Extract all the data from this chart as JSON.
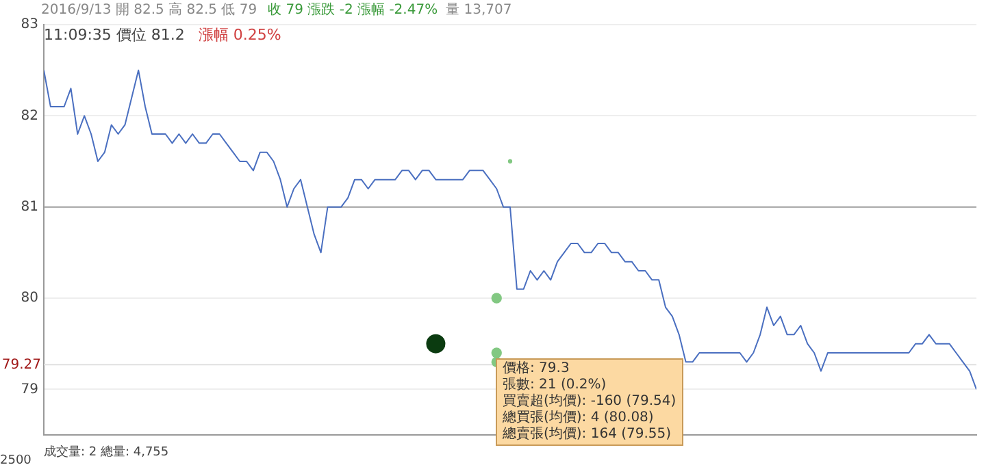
{
  "chart_data": {
    "type": "line",
    "title": "2016/9/13 開 82.5 高 82.5 低 79",
    "subtitle": "收 79 漲跌 -2 漲幅 -2.47%",
    "annotations": [
      "量 13,707",
      "11:09:35 價位 81.2",
      "漲幅 0.25%",
      "成交量: 2 總量: 4,755",
      "2500",
      "價格: 79.3\n張數: 21 (0.2%)\n買賣超(均價): -160 (79.54)\n總買張(均價): 4 (80.08)\n總賣張(均價): 164 (79.55)"
    ],
    "categories": [
      null,
      null,
      null,
      null,
      null,
      null,
      null,
      null,
      null,
      null,
      null,
      null,
      null,
      null,
      null,
      null,
      null,
      null,
      null,
      null,
      null,
      null,
      null,
      null,
      null,
      null,
      null,
      null,
      null,
      null,
      null,
      null,
      null,
      null,
      null,
      null,
      null,
      null,
      null,
      null,
      null,
      null,
      null,
      null,
      null,
      null,
      null,
      null,
      null,
      null,
      null,
      null,
      null,
      null,
      null,
      null,
      null,
      null,
      null,
      null,
      null,
      null,
      null,
      null,
      null,
      null,
      null,
      null,
      null,
      null,
      null,
      null,
      null,
      null,
      null,
      null,
      null,
      null,
      null,
      null,
      null,
      null,
      null,
      null,
      null,
      null,
      null,
      null,
      null,
      null,
      null,
      null,
      null,
      null,
      null,
      null,
      null,
      null,
      null,
      null,
      null,
      null,
      null,
      null,
      null,
      null,
      null,
      null,
      null,
      null,
      null,
      null,
      null,
      null,
      null,
      null,
      null,
      null,
      null,
      null,
      null,
      null,
      null,
      null,
      null,
      null,
      null,
      null,
      null,
      null,
      null,
      null,
      null,
      null,
      null,
      null,
      null,
      null,
      null
    ],
    "ylim": [
      78.5,
      83
    ],
    "yticks": [
      79,
      80,
      81,
      82,
      83
    ],
    "grid": "y",
    "tick_labels": "y",
    "line_style": "solid",
    "ref_lines": [
      {
        "axis": "y",
        "value": 81,
        "label": null,
        "color": "#a0a0a0"
      },
      {
        "axis": "y",
        "value": 79.27,
        "label": "79.27",
        "color": "#e0e0e0"
      }
    ],
    "series": [
      {
        "color": "#4a6fc0",
        "marker": "none",
        "values": [
          82.5,
          82.1,
          82.1,
          82.1,
          82.3,
          81.8,
          82.0,
          81.8,
          81.5,
          81.6,
          81.9,
          81.8,
          81.9,
          82.2,
          82.5,
          82.1,
          81.8,
          81.8,
          81.8,
          81.7,
          81.8,
          81.7,
          81.8,
          81.7,
          81.7,
          81.8,
          81.8,
          81.7,
          81.6,
          81.5,
          81.5,
          81.4,
          81.6,
          81.6,
          81.5,
          81.3,
          81.0,
          81.2,
          81.3,
          81.0,
          80.7,
          80.5,
          81.0,
          81.0,
          81.0,
          81.1,
          81.3,
          81.3,
          81.2,
          81.3,
          81.3,
          81.3,
          81.3,
          81.4,
          81.4,
          81.3,
          81.4,
          81.4,
          81.3,
          81.3,
          81.3,
          81.3,
          81.3,
          81.4,
          81.4,
          81.4,
          81.3,
          81.2,
          81.0,
          81.0,
          80.1,
          80.1,
          80.3,
          80.2,
          80.3,
          80.2,
          80.4,
          80.5,
          80.6,
          80.6,
          80.5,
          80.5,
          80.6,
          80.6,
          80.5,
          80.5,
          80.4,
          80.4,
          80.3,
          80.3,
          80.2,
          80.2,
          79.9,
          79.8,
          79.6,
          79.3,
          79.3,
          79.4,
          79.4,
          79.4,
          79.4,
          79.4,
          79.4,
          79.4,
          79.3,
          79.4,
          79.6,
          79.9,
          79.7,
          79.8,
          79.6,
          79.6,
          79.7,
          79.5,
          79.4,
          79.2,
          79.4,
          79.4,
          79.4,
          79.4,
          79.4,
          79.4,
          79.4,
          79.4,
          79.4,
          79.4,
          79.4,
          79.4,
          79.4,
          79.5,
          79.5,
          79.6,
          79.5,
          79.5,
          79.5,
          79.4,
          79.3,
          79.2,
          79.0
        ]
      },
      {
        "type": "bubble",
        "color": "#82c882",
        "values": [
          null,
          null,
          null,
          null,
          null,
          null,
          null,
          null,
          null,
          null,
          null,
          null,
          null,
          null,
          null,
          null,
          null,
          null,
          null,
          null,
          null,
          null,
          null,
          null,
          null,
          null,
          null,
          null,
          null,
          null,
          null,
          null,
          null,
          null,
          null,
          null,
          null,
          null,
          null,
          null,
          null,
          null,
          null,
          null,
          null,
          null,
          null,
          null,
          null,
          null,
          null,
          null,
          null,
          null,
          null,
          null,
          null,
          null,
          null,
          null,
          null,
          null,
          null,
          null,
          null,
          null,
          null,
          80.0,
          null,
          81.5,
          null,
          null,
          null,
          null,
          null,
          null,
          null,
          null,
          null,
          null,
          null,
          null,
          null,
          null,
          null,
          null,
          null,
          null,
          null,
          null,
          null,
          null,
          null,
          null,
          null,
          null,
          null,
          null,
          null,
          null,
          null,
          null,
          null,
          null,
          null,
          null,
          null,
          null,
          null,
          null,
          null,
          null,
          null,
          null,
          null,
          null,
          null,
          null,
          null,
          null,
          null,
          null,
          null,
          null,
          null,
          null,
          null,
          null,
          null,
          null,
          null,
          null,
          null,
          null,
          null,
          null,
          null,
          null,
          null
        ],
        "sizes": [
          null,
          null,
          null,
          null,
          null,
          null,
          null,
          null,
          null,
          null,
          null,
          null,
          null,
          null,
          null,
          null,
          null,
          null,
          null,
          null,
          null,
          null,
          null,
          null,
          null,
          null,
          null,
          null,
          null,
          null,
          null,
          null,
          null,
          null,
          null,
          null,
          null,
          null,
          null,
          null,
          null,
          null,
          null,
          null,
          null,
          null,
          null,
          null,
          null,
          null,
          null,
          null,
          null,
          null,
          null,
          null,
          null,
          null,
          null,
          null,
          null,
          null,
          null,
          null,
          null,
          null,
          null,
          0.3,
          null,
          0.05,
          null,
          null,
          null,
          null,
          null,
          null,
          null,
          null,
          null,
          null,
          null,
          null,
          null,
          null,
          null,
          null,
          null,
          null,
          null,
          null,
          null,
          null,
          null,
          null,
          null,
          null,
          null,
          null,
          null,
          null,
          null,
          null,
          null,
          null,
          null,
          null,
          null,
          null,
          null,
          null,
          null,
          null,
          null,
          null,
          null,
          null,
          null,
          null,
          null,
          null,
          null,
          null,
          null,
          null,
          null,
          null,
          null,
          null,
          null,
          null,
          null,
          null,
          null,
          null,
          null,
          null,
          null,
          null,
          null
        ]
      },
      {
        "type": "bubble",
        "color": "#82c882",
        "values": [
          null,
          null,
          null,
          null,
          null,
          null,
          null,
          null,
          null,
          null,
          null,
          null,
          null,
          null,
          null,
          null,
          null,
          null,
          null,
          null,
          null,
          null,
          null,
          null,
          null,
          null,
          null,
          null,
          null,
          null,
          null,
          null,
          null,
          null,
          null,
          null,
          null,
          null,
          null,
          null,
          null,
          null,
          null,
          null,
          null,
          null,
          null,
          null,
          null,
          null,
          null,
          null,
          null,
          null,
          null,
          null,
          null,
          null,
          null,
          null,
          null,
          null,
          null,
          null,
          null,
          null,
          null,
          79.4,
          null,
          null,
          null,
          null,
          null,
          null,
          null,
          null,
          null,
          null,
          null,
          null,
          null,
          null,
          null,
          null,
          null,
          null,
          null,
          null,
          null,
          null,
          null,
          null,
          null,
          null,
          null,
          null,
          null,
          null,
          null,
          null,
          null,
          null,
          null,
          null,
          null,
          null,
          null,
          null,
          null,
          null,
          null,
          null,
          null,
          null,
          null,
          null,
          null,
          null,
          null,
          null,
          null,
          null,
          null,
          null,
          null,
          null,
          null,
          null,
          null,
          null,
          null,
          null,
          null,
          null,
          null,
          null,
          null,
          null,
          null
        ],
        "sizes": [
          null,
          null,
          null,
          null,
          null,
          null,
          null,
          null,
          null,
          null,
          null,
          null,
          null,
          null,
          null,
          null,
          null,
          null,
          null,
          null,
          null,
          null,
          null,
          null,
          null,
          null,
          null,
          null,
          null,
          null,
          null,
          null,
          null,
          null,
          null,
          null,
          null,
          null,
          null,
          null,
          null,
          null,
          null,
          null,
          null,
          null,
          null,
          null,
          null,
          null,
          null,
          null,
          null,
          null,
          null,
          null,
          null,
          null,
          null,
          null,
          null,
          null,
          null,
          null,
          null,
          null,
          null,
          0.3,
          null,
          null,
          null,
          null,
          null,
          null,
          null,
          null,
          null,
          null,
          null,
          null,
          null,
          null,
          null,
          null,
          null,
          null,
          null,
          null,
          null,
          null,
          null,
          null,
          null,
          null,
          null,
          null,
          null,
          null,
          null,
          null,
          null,
          null,
          null,
          null,
          null,
          null,
          null,
          null,
          null,
          null,
          null,
          null,
          null,
          null,
          null,
          null,
          null,
          null,
          null,
          null,
          null,
          null,
          null,
          null,
          null,
          null,
          null,
          null,
          null,
          null,
          null,
          null,
          null,
          null,
          null,
          null,
          null,
          null,
          null
        ]
      },
      {
        "type": "bubble",
        "color": "#82c882",
        "values": [
          null,
          null,
          null,
          null,
          null,
          null,
          null,
          null,
          null,
          null,
          null,
          null,
          null,
          null,
          null,
          null,
          null,
          null,
          null,
          null,
          null,
          null,
          null,
          null,
          null,
          null,
          null,
          null,
          null,
          null,
          null,
          null,
          null,
          null,
          null,
          null,
          null,
          null,
          null,
          null,
          null,
          null,
          null,
          null,
          null,
          null,
          null,
          null,
          null,
          null,
          null,
          null,
          null,
          null,
          null,
          null,
          null,
          null,
          null,
          null,
          null,
          null,
          null,
          null,
          null,
          null,
          null,
          79.3,
          null,
          null,
          null,
          null,
          null,
          null,
          null,
          null,
          null,
          null,
          null,
          null,
          null,
          null,
          null,
          null,
          null,
          null,
          null,
          null,
          null,
          null,
          null,
          null,
          null,
          null,
          null,
          null,
          null,
          null,
          null,
          null,
          null,
          null,
          null,
          null,
          null,
          null,
          null,
          null,
          null,
          null,
          null,
          null,
          null,
          null,
          null,
          null,
          null,
          null,
          null,
          null,
          null,
          null,
          null,
          null,
          null,
          null,
          null,
          null,
          null,
          null,
          null,
          null,
          null,
          null,
          null,
          null,
          null,
          null,
          null
        ],
        "sizes": [
          null,
          null,
          null,
          null,
          null,
          null,
          null,
          null,
          null,
          null,
          null,
          null,
          null,
          null,
          null,
          null,
          null,
          null,
          null,
          null,
          null,
          null,
          null,
          null,
          null,
          null,
          null,
          null,
          null,
          null,
          null,
          null,
          null,
          null,
          null,
          null,
          null,
          null,
          null,
          null,
          null,
          null,
          null,
          null,
          null,
          null,
          null,
          null,
          null,
          null,
          null,
          null,
          null,
          null,
          null,
          null,
          null,
          null,
          null,
          null,
          null,
          null,
          null,
          null,
          null,
          null,
          null,
          0.3,
          null,
          null,
          null,
          null,
          null,
          null,
          null,
          null,
          null,
          null,
          null,
          null,
          null,
          null,
          null,
          null,
          null,
          null,
          null,
          null,
          null,
          null,
          null,
          null,
          null,
          null,
          null,
          null,
          null,
          null,
          null,
          null,
          null,
          null,
          null,
          null,
          null,
          null,
          null,
          null,
          null,
          null,
          null,
          null,
          null,
          null,
          null,
          null,
          null,
          null,
          null,
          null,
          null,
          null,
          null,
          null,
          null,
          null,
          null,
          null,
          null,
          null,
          null,
          null,
          null,
          null,
          null,
          null,
          null,
          null,
          null
        ]
      },
      {
        "type": "bubble",
        "color": "#0b3b10",
        "marker": "circle",
        "values": [
          null,
          null,
          null,
          null,
          null,
          null,
          null,
          null,
          null,
          null,
          null,
          null,
          null,
          null,
          null,
          null,
          null,
          null,
          null,
          null,
          null,
          null,
          null,
          null,
          null,
          null,
          null,
          null,
          null,
          null,
          null,
          null,
          null,
          null,
          null,
          null,
          null,
          null,
          null,
          null,
          null,
          null,
          null,
          null,
          null,
          null,
          null,
          null,
          null,
          null,
          null,
          null,
          null,
          null,
          null,
          null,
          null,
          null,
          79.5,
          null,
          null,
          null,
          null,
          null,
          null,
          null,
          null,
          null,
          null,
          null,
          null,
          null,
          null,
          null,
          null,
          null,
          null,
          null,
          null,
          null,
          null,
          null,
          null,
          null,
          null,
          null,
          null,
          null,
          null,
          null,
          null,
          null,
          null,
          null,
          null,
          null,
          null,
          null,
          null,
          null,
          null,
          null,
          null,
          null,
          null,
          null,
          null,
          null,
          null,
          null,
          null,
          null,
          null,
          null,
          null,
          null,
          null,
          null,
          null,
          null,
          null,
          null,
          null,
          null,
          null,
          null,
          null,
          null,
          null,
          null,
          null,
          null,
          null,
          null,
          null,
          null,
          null,
          null,
          null
        ],
        "sizes": [
          null,
          null,
          null,
          null,
          null,
          null,
          null,
          null,
          null,
          null,
          null,
          null,
          null,
          null,
          null,
          null,
          null,
          null,
          null,
          null,
          null,
          null,
          null,
          null,
          null,
          null,
          null,
          null,
          null,
          null,
          null,
          null,
          null,
          null,
          null,
          null,
          null,
          null,
          null,
          null,
          null,
          null,
          null,
          null,
          null,
          null,
          null,
          null,
          null,
          null,
          null,
          null,
          null,
          null,
          null,
          null,
          null,
          null,
          1,
          null,
          null,
          null,
          null,
          null,
          null,
          null,
          null,
          null,
          null,
          null,
          null,
          null,
          null,
          null,
          null,
          null,
          null,
          null,
          null,
          null,
          null,
          null,
          null,
          null,
          null,
          null,
          null,
          null,
          null,
          null,
          null,
          null,
          null,
          null,
          null,
          null,
          null,
          null,
          null,
          null,
          null,
          null,
          null,
          null,
          null,
          null,
          null,
          null,
          null,
          null,
          null,
          null,
          null,
          null,
          null,
          null,
          null,
          null,
          null,
          null,
          null,
          null,
          null,
          null,
          null,
          null,
          null,
          null,
          null,
          null,
          null,
          null,
          null,
          null,
          null,
          null,
          null,
          null,
          null
        ]
      }
    ]
  }
}
